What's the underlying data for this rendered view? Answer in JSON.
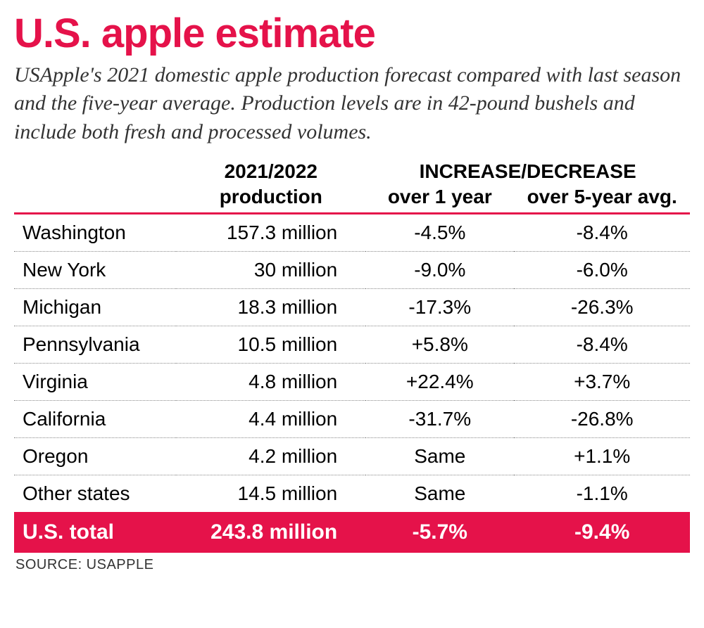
{
  "colors": {
    "accent": "#e5124a",
    "text": "#000000",
    "subtext": "#333333",
    "dotted": "#888888",
    "total_bg": "#e5124a",
    "total_text": "#ffffff",
    "background": "#ffffff"
  },
  "title": "U.S. apple estimate",
  "subtitle": "USApple's 2021 domestic apple production forecast compared with last season and the five-year average. Production levels are in 42-pound bushels and include both fresh and processed volumes.",
  "table": {
    "header": {
      "production_top": "2021/2022",
      "production_sub": "production",
      "incdec_top": "INCREASE/DECREASE",
      "over1": "over 1 year",
      "over5": "over 5-year avg."
    },
    "rows": [
      {
        "state": "Washington",
        "production": "157.3 million",
        "change1": "-4.5%",
        "change5": "-8.4%"
      },
      {
        "state": "New York",
        "production": "30 million",
        "change1": "-9.0%",
        "change5": "-6.0%"
      },
      {
        "state": "Michigan",
        "production": "18.3 million",
        "change1": "-17.3%",
        "change5": "-26.3%"
      },
      {
        "state": "Pennsylvania",
        "production": "10.5 million",
        "change1": "+5.8%",
        "change5": "-8.4%"
      },
      {
        "state": "Virginia",
        "production": "4.8 million",
        "change1": "+22.4%",
        "change5": "+3.7%"
      },
      {
        "state": "California",
        "production": "4.4 million",
        "change1": "-31.7%",
        "change5": "-26.8%"
      },
      {
        "state": "Oregon",
        "production": "4.2 million",
        "change1": "Same",
        "change5": "+1.1%"
      },
      {
        "state": "Other states",
        "production": "14.5 million",
        "change1": "Same",
        "change5": "-1.1%"
      }
    ],
    "total": {
      "label": "U.S. total",
      "production": "243.8 million",
      "change1": "-5.7%",
      "change5": "-9.4%"
    }
  },
  "source": "SOURCE: USAPPLE"
}
